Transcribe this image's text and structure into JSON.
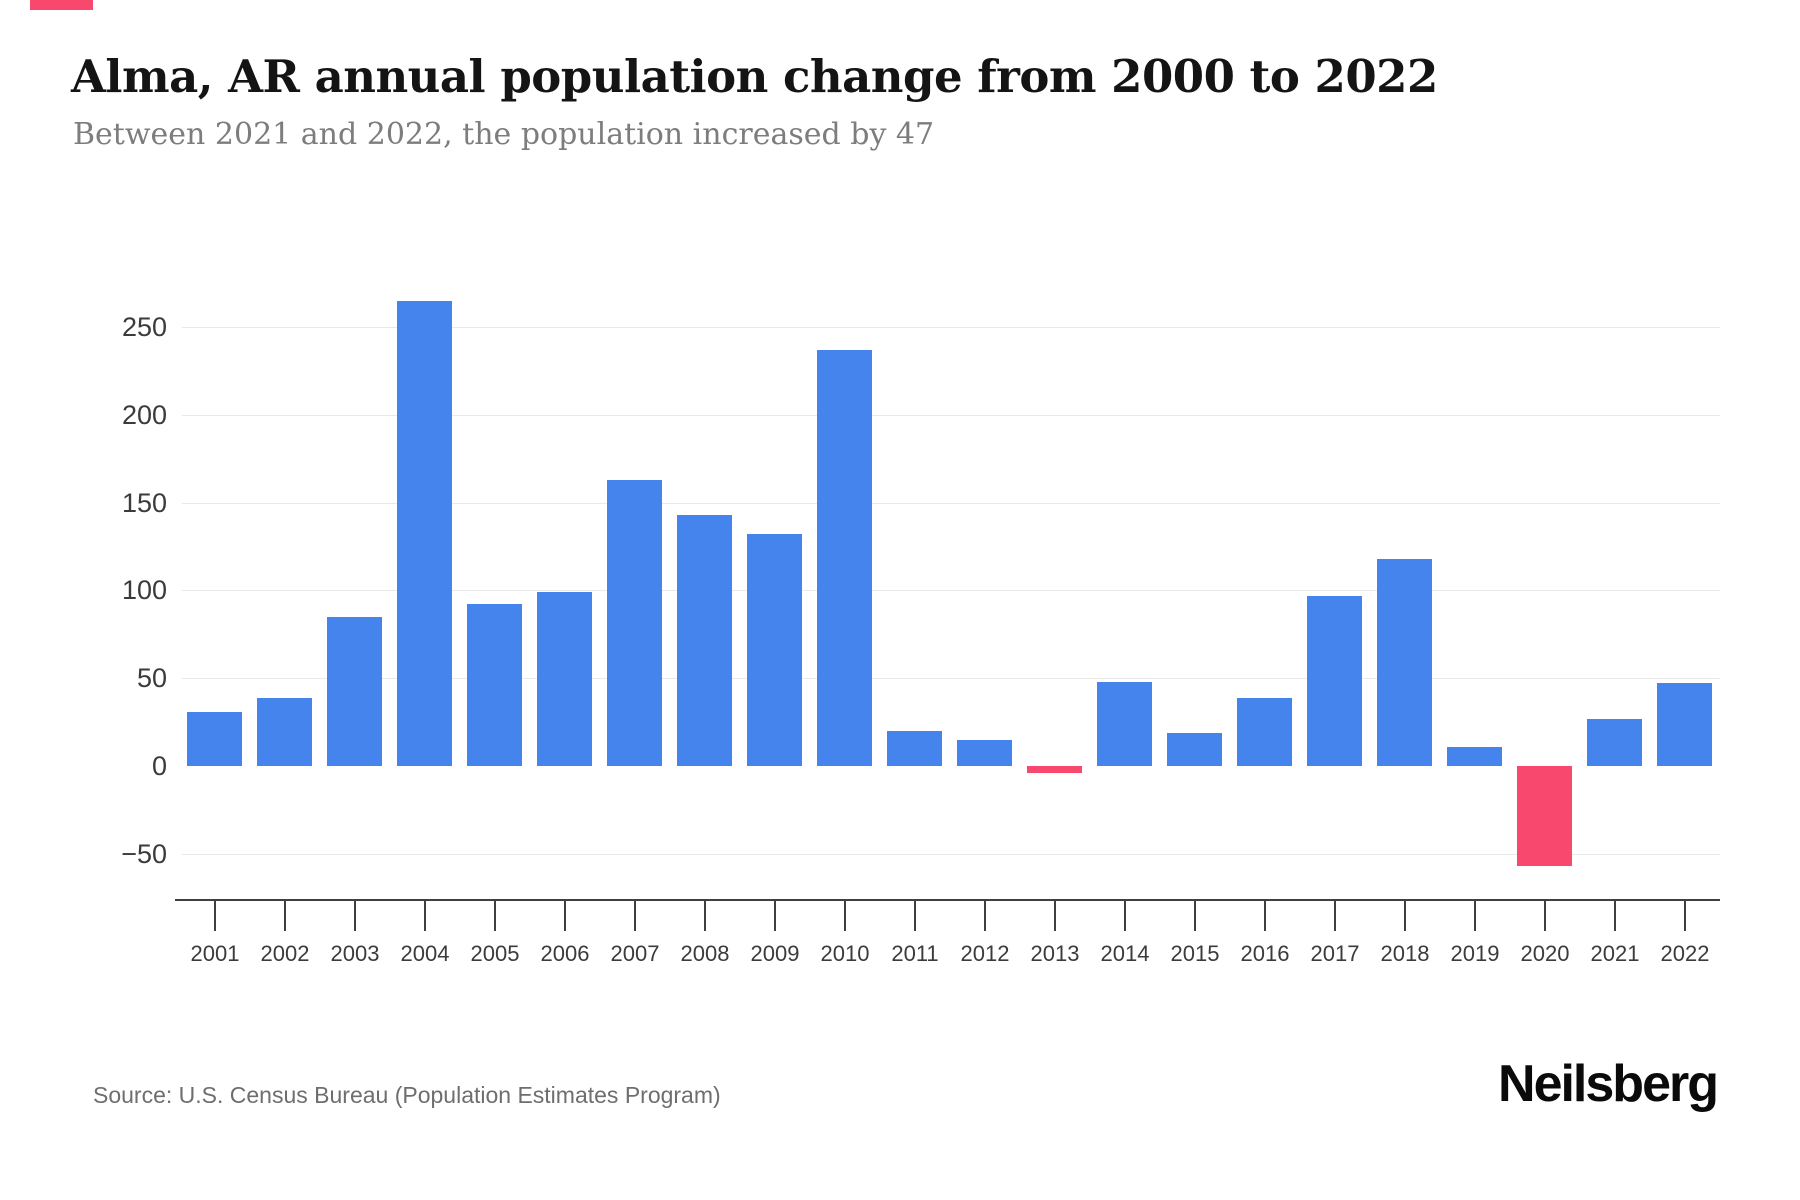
{
  "page": {
    "background": "#ffffff"
  },
  "brand": {
    "accent_color": "#f9486e",
    "logo_text": "Neilsberg"
  },
  "header": {
    "title": "Alma, AR annual population change from 2000 to 2022",
    "subtitle": "Between 2021 and 2022, the population increased by 47"
  },
  "footer": {
    "source_text": "Source: U.S. Census Bureau (Population Estimates Program)"
  },
  "chart_data": {
    "type": "bar",
    "title": "Alma, AR annual population change from 2000 to 2022",
    "subtitle": "Between 2021 and 2022, the population increased by 47",
    "categories": [
      "2001",
      "2002",
      "2003",
      "2004",
      "2005",
      "2006",
      "2007",
      "2008",
      "2009",
      "2010",
      "2011",
      "2012",
      "2013",
      "2014",
      "2015",
      "2016",
      "2017",
      "2018",
      "2019",
      "2020",
      "2021",
      "2022"
    ],
    "values": [
      31,
      39,
      85,
      265,
      92,
      99,
      163,
      143,
      132,
      237,
      20,
      15,
      -4,
      48,
      19,
      39,
      97,
      118,
      11,
      -57,
      27,
      47
    ],
    "yticks": [
      250,
      200,
      150,
      100,
      50,
      0,
      -50
    ],
    "ylim": [
      -75,
      290
    ],
    "xlabel": "",
    "ylabel": "",
    "grid": "horizontal-light",
    "legend": "none",
    "positive_color": "#4584ec",
    "negative_color": "#f9486e"
  }
}
